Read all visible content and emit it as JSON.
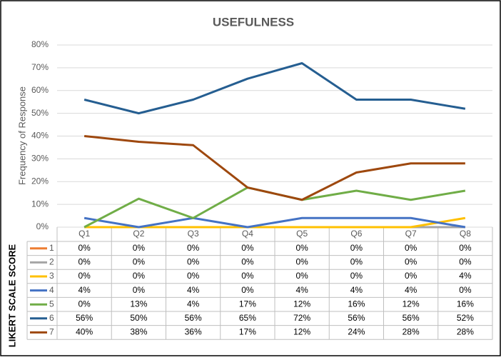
{
  "chart_data": {
    "type": "line",
    "title": "USEFULNESS",
    "y_label": "Frequency of Response",
    "legend_title": "LIKERT SCALE SCORE",
    "categories": [
      "Q1",
      "Q2",
      "Q3",
      "Q4",
      "Q5",
      "Q6",
      "Q7",
      "Q8"
    ],
    "ylim": [
      0,
      80
    ],
    "yticks": [
      {
        "value": 0,
        "label": "0%"
      },
      {
        "value": 10,
        "label": "10%"
      },
      {
        "value": 20,
        "label": "20%"
      },
      {
        "value": 30,
        "label": "30%"
      },
      {
        "value": 40,
        "label": "40%"
      },
      {
        "value": 50,
        "label": "50%"
      },
      {
        "value": 60,
        "label": "60%"
      },
      {
        "value": 70,
        "label": "70%"
      },
      {
        "value": 80,
        "label": "80%"
      }
    ],
    "grid": true,
    "series": [
      {
        "name": "1",
        "color": "#ed7d31",
        "values": [
          0,
          0,
          0,
          0,
          0,
          0,
          0,
          0
        ],
        "value_labels": [
          "0%",
          "0%",
          "0%",
          "0%",
          "0%",
          "0%",
          "0%",
          "0%"
        ]
      },
      {
        "name": "2",
        "color": "#a5a5a5",
        "values": [
          0,
          0,
          0,
          0,
          0,
          0,
          0,
          0
        ],
        "value_labels": [
          "0%",
          "0%",
          "0%",
          "0%",
          "0%",
          "0%",
          "0%",
          "0%"
        ]
      },
      {
        "name": "3",
        "color": "#ffc000",
        "values": [
          0,
          0,
          0,
          0,
          0,
          0,
          0,
          4
        ],
        "value_labels": [
          "0%",
          "0%",
          "0%",
          "0%",
          "0%",
          "0%",
          "0%",
          "4%"
        ]
      },
      {
        "name": "4",
        "color": "#4472c4",
        "values": [
          4,
          0,
          4,
          0,
          4,
          4,
          4,
          0
        ],
        "value_labels": [
          "4%",
          "0%",
          "4%",
          "0%",
          "4%",
          "4%",
          "4%",
          "0%"
        ]
      },
      {
        "name": "5",
        "color": "#70ad47",
        "values": [
          0,
          12.5,
          4,
          17.4,
          12,
          16,
          12,
          16
        ],
        "value_labels": [
          "0%",
          "13%",
          "4%",
          "17%",
          "12%",
          "16%",
          "12%",
          "16%"
        ]
      },
      {
        "name": "6",
        "color": "#255e91",
        "values": [
          56,
          50,
          56,
          65.2,
          72,
          56,
          56,
          52
        ],
        "value_labels": [
          "56%",
          "50%",
          "56%",
          "65%",
          "72%",
          "56%",
          "56%",
          "52%"
        ]
      },
      {
        "name": "7",
        "color": "#9e480e",
        "values": [
          40,
          37.5,
          36,
          17.4,
          12,
          24,
          28,
          28
        ],
        "value_labels": [
          "40%",
          "38%",
          "36%",
          "17%",
          "12%",
          "24%",
          "28%",
          "28%"
        ]
      }
    ]
  }
}
